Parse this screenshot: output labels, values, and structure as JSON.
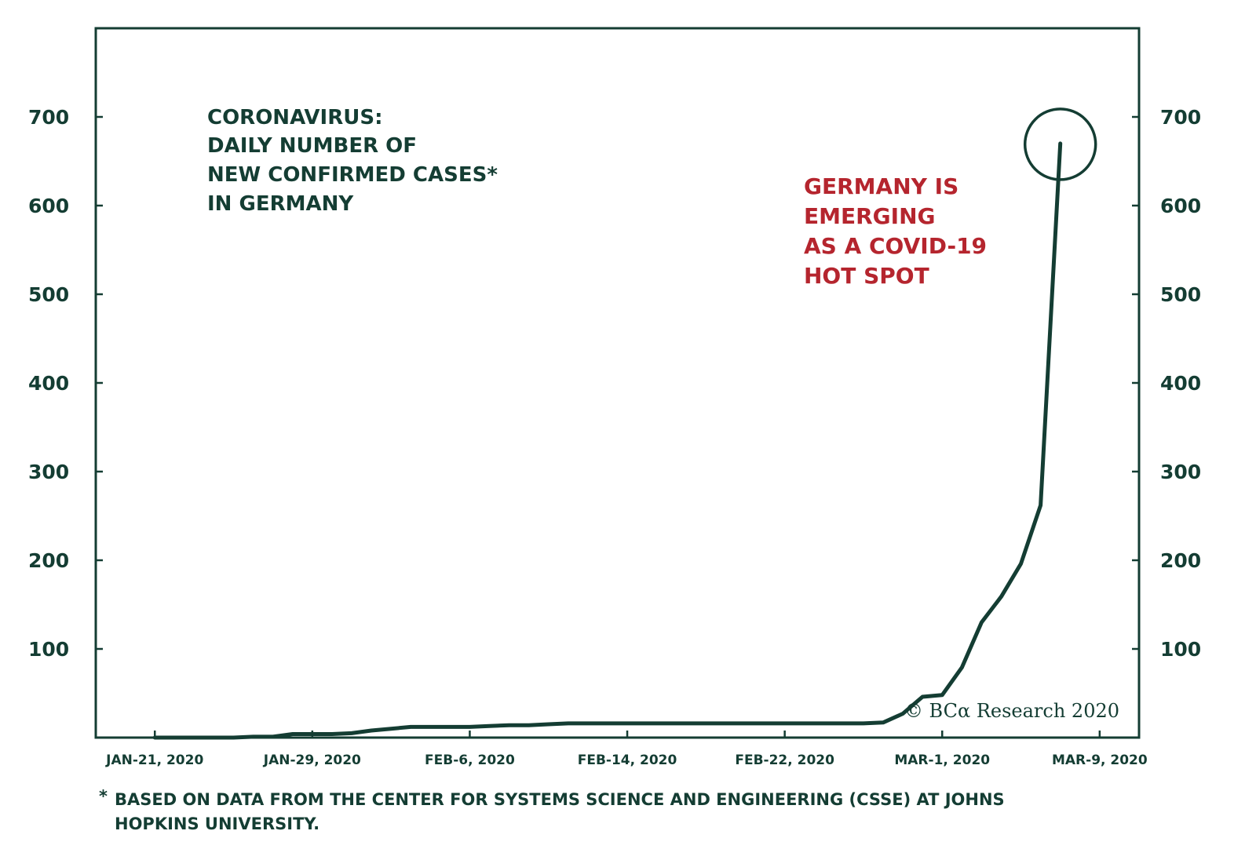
{
  "colors": {
    "ink": "#143d33",
    "highlight": "#b5252e",
    "background": "#ffffff"
  },
  "chart_data": {
    "type": "line",
    "title_lines": [
      "CORONAVIRUS:",
      "DAILY NUMBER OF",
      "NEW CONFIRMED CASES*",
      "IN GERMANY"
    ],
    "annotation_lines": [
      "GERMANY IS",
      "EMERGING",
      "AS A COVID-19",
      "HOT SPOT"
    ],
    "credit": "© BCα Research 2020",
    "ylim": [
      0,
      800
    ],
    "y_ticks": [
      100,
      200,
      300,
      400,
      500,
      600,
      700
    ],
    "y_tick_labels": [
      "100",
      "200",
      "300",
      "400",
      "500",
      "600",
      "700"
    ],
    "x_ticks": [
      "2020-01-21",
      "2020-01-29",
      "2020-02-06",
      "2020-02-14",
      "2020-02-22",
      "2020-03-01",
      "2020-03-09"
    ],
    "x_tick_labels": [
      "JAN-21, 2020",
      "JAN-29, 2020",
      "FEB-6, 2020",
      "FEB-14, 2020",
      "FEB-22, 2020",
      "MAR-1, 2020",
      "MAR-9, 2020"
    ],
    "xlim": [
      "2020-01-18",
      "2020-03-11"
    ],
    "grid": false,
    "legend": "none",
    "highlight_point": "2020-03-07",
    "series": [
      {
        "x": [
          "2020-01-21",
          "2020-01-22",
          "2020-01-23",
          "2020-01-24",
          "2020-01-25",
          "2020-01-26",
          "2020-01-27",
          "2020-01-28",
          "2020-01-29",
          "2020-01-30",
          "2020-01-31",
          "2020-02-01",
          "2020-02-02",
          "2020-02-03",
          "2020-02-04",
          "2020-02-05",
          "2020-02-06",
          "2020-02-07",
          "2020-02-08",
          "2020-02-09",
          "2020-02-10",
          "2020-02-11",
          "2020-02-12",
          "2020-02-13",
          "2020-02-14",
          "2020-02-15",
          "2020-02-16",
          "2020-02-17",
          "2020-02-18",
          "2020-02-19",
          "2020-02-20",
          "2020-02-21",
          "2020-02-22",
          "2020-02-23",
          "2020-02-24",
          "2020-02-25",
          "2020-02-26",
          "2020-02-27",
          "2020-02-28",
          "2020-02-29",
          "2020-03-01",
          "2020-03-02",
          "2020-03-03",
          "2020-03-04",
          "2020-03-05",
          "2020-03-06",
          "2020-03-07"
        ],
        "y": [
          0,
          0,
          0,
          0,
          0,
          1,
          1,
          4,
          4,
          4,
          5,
          8,
          10,
          12,
          12,
          12,
          12,
          13,
          14,
          14,
          15,
          16,
          16,
          16,
          16,
          16,
          16,
          16,
          16,
          16,
          16,
          16,
          16,
          16,
          16,
          16,
          16,
          17,
          27,
          46,
          48,
          79,
          130,
          159,
          196,
          262,
          670
        ]
      }
    ]
  },
  "footnote": {
    "marker": "*",
    "lines": [
      "BASED ON DATA FROM THE CENTER FOR SYSTEMS SCIENCE AND ENGINEERING (CSSE) AT JOHNS",
      "HOPKINS UNIVERSITY."
    ]
  }
}
